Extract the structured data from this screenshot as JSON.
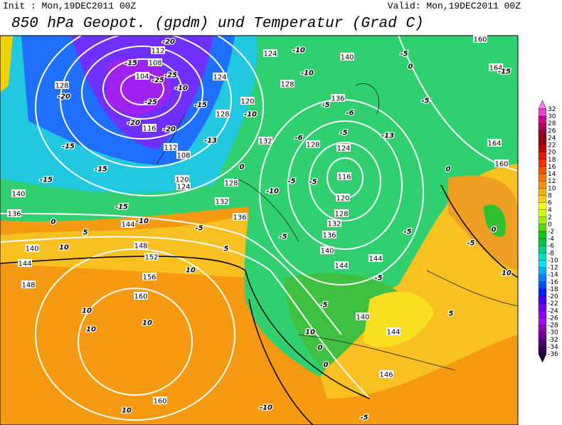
{
  "header": {
    "init": "Init : Mon,19DEC2011 00Z",
    "valid": "Valid: Mon,19DEC2011 00Z",
    "title": "850 hPa Geopot. (gpdm) und Temperatur (Grad C)"
  },
  "map": {
    "geopotential_labels": [
      112,
      108,
      104,
      116,
      112,
      108,
      120,
      124,
      128,
      132,
      136,
      144,
      148,
      152,
      156,
      160,
      160,
      140,
      144,
      148,
      136,
      140,
      128,
      124,
      128,
      120,
      124,
      128,
      132,
      128,
      124,
      136,
      140,
      116,
      120,
      128,
      132,
      136,
      140,
      144,
      144,
      140,
      144,
      146,
      160,
      164,
      164,
      160
    ],
    "temperature_labels": [
      -20,
      -15,
      -25,
      -25,
      -25,
      -20,
      -20,
      -15,
      -15,
      -15,
      -15,
      -10,
      -5,
      0,
      5,
      10,
      5,
      10,
      10,
      10,
      10,
      10,
      -20,
      -10,
      -15,
      -13,
      -10,
      -10,
      -10,
      -5,
      -6,
      -6,
      -5,
      -13,
      -5,
      -5,
      0,
      -15,
      0,
      -10,
      -5,
      -5,
      -5,
      -5,
      -5,
      -5,
      0,
      0,
      0,
      0,
      -5,
      10,
      5,
      10,
      -5,
      -10
    ]
  },
  "colorbar": {
    "levels": [
      32,
      30,
      28,
      26,
      24,
      22,
      20,
      18,
      16,
      14,
      12,
      10,
      8,
      6,
      4,
      2,
      0,
      -2,
      -4,
      -6,
      -8,
      -10,
      -12,
      -14,
      -16,
      -18,
      -20,
      -22,
      -24,
      -26,
      -28,
      -30,
      -32,
      -34,
      -36
    ],
    "colors": [
      "#ff80ff",
      "#f040d0",
      "#d00090",
      "#b00060",
      "#900030",
      "#a00000",
      "#c00000",
      "#e02000",
      "#ff3000",
      "#ff5000",
      "#ff7000",
      "#ff9000",
      "#ffb000",
      "#ffd000",
      "#ffff00",
      "#d0ff00",
      "#a0f000",
      "#50e000",
      "#00d000",
      "#00c040",
      "#00d080",
      "#00e0c0",
      "#00e0ff",
      "#00b0ff",
      "#0080ff",
      "#0050ff",
      "#0020ff",
      "#4000ff",
      "#7000ff",
      "#9000ff",
      "#b000ff",
      "#9000c0",
      "#700090",
      "#500070",
      "#300050",
      "#200040"
    ]
  }
}
